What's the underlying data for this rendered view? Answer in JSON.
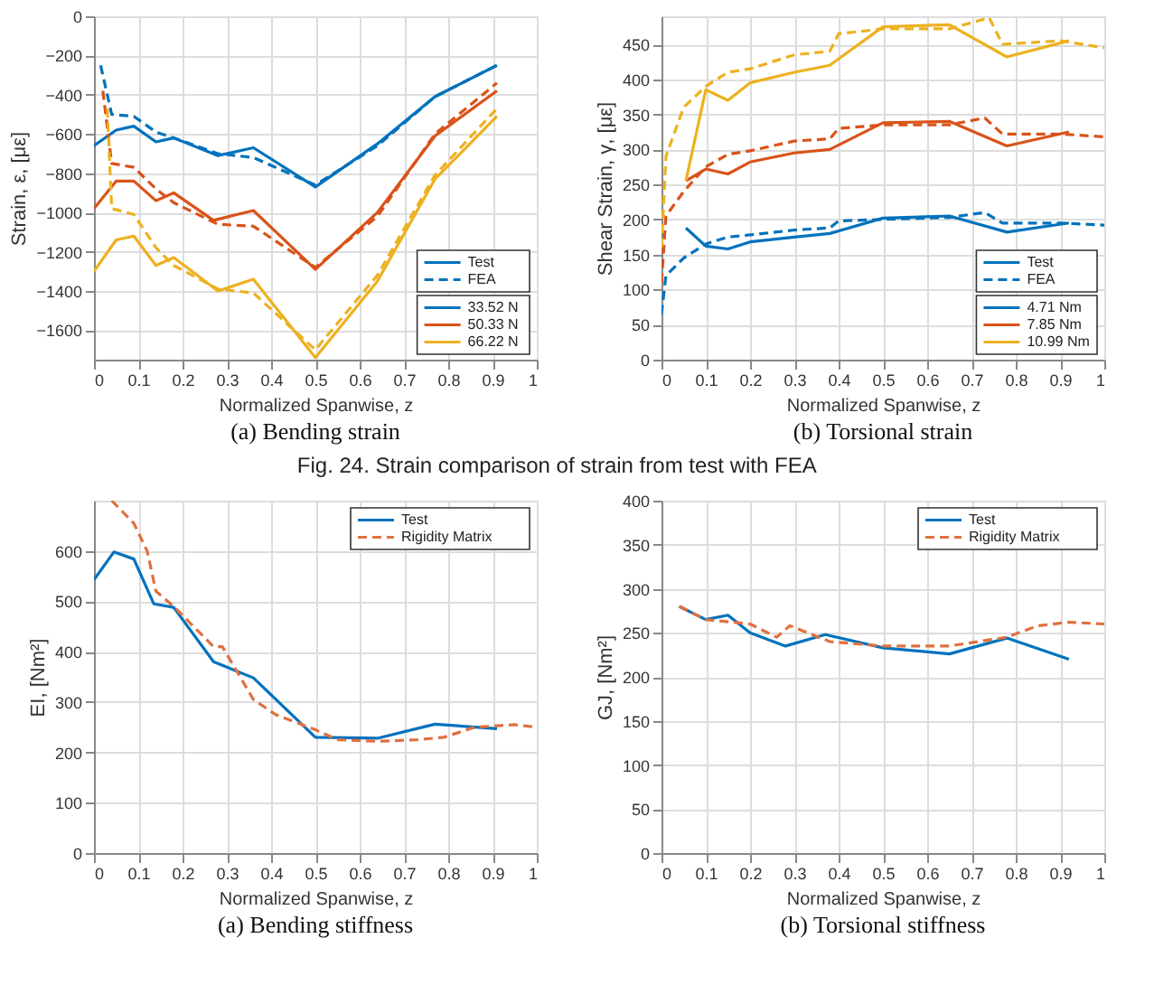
{
  "chart_data": [
    {
      "type": "line",
      "title": "(a) Bending strain",
      "xlabel": "Normalized Spanwise, z",
      "ylabel": "Strain, ε, [με]",
      "xlim": [
        0,
        1
      ],
      "xticks": [
        0,
        0.1,
        0.2,
        0.3,
        0.4,
        0.5,
        0.6,
        0.7,
        0.8,
        0.9,
        1
      ],
      "ylim": [
        -1750,
        0
      ],
      "yticks": [
        -1600,
        -1400,
        -1200,
        -1000,
        -800,
        -600,
        -400,
        -200,
        0
      ],
      "grid": true,
      "legend": "bottom right",
      "annotations": [
        "Test",
        "FEA",
        "Fig. 24. Strain comparison of strain from test with FEA"
      ],
      "series": [
        {
          "name": "33.52 N",
          "color": "#0072bd",
          "line_style": "solid",
          "x": [
            0,
            0.05,
            0.09,
            0.14,
            0.18,
            0.28,
            0.36,
            0.5,
            0.64,
            0.77,
            0.91
          ],
          "values": [
            -660,
            -580,
            -560,
            -640,
            -620,
            -710,
            -670,
            -870,
            -650,
            -410,
            -250
          ]
        },
        {
          "color": "#0072bd",
          "line_style": "dashed",
          "x": [
            0.015,
            0.04,
            0.09,
            0.14,
            0.18,
            0.28,
            0.36,
            0.5,
            0.64,
            0.77,
            0.91
          ],
          "values": [
            -250,
            -500,
            -510,
            -590,
            -620,
            -700,
            -720,
            -860,
            -660,
            -410,
            -250
          ]
        },
        {
          "name": "50.33 N",
          "color": "#d95319",
          "line_style": "solid",
          "x": [
            0,
            0.05,
            0.09,
            0.14,
            0.18,
            0.27,
            0.36,
            0.5,
            0.64,
            0.77,
            0.91
          ],
          "values": [
            -980,
            -840,
            -840,
            -940,
            -900,
            -1040,
            -990,
            -1290,
            -1000,
            -610,
            -380
          ]
        },
        {
          "color": "#d95319",
          "line_style": "dashed",
          "x": [
            0.02,
            0.04,
            0.09,
            0.14,
            0.18,
            0.28,
            0.36,
            0.5,
            0.64,
            0.77,
            0.91
          ],
          "values": [
            -380,
            -750,
            -770,
            -880,
            -950,
            -1060,
            -1070,
            -1280,
            -1020,
            -600,
            -340
          ]
        },
        {
          "name": "66.22 N",
          "color": "#edb120",
          "line_style": "solid",
          "x": [
            0,
            0.05,
            0.09,
            0.14,
            0.18,
            0.28,
            0.36,
            0.5,
            0.64,
            0.77,
            0.91
          ],
          "values": [
            -1300,
            -1140,
            -1120,
            -1270,
            -1230,
            -1400,
            -1340,
            -1740,
            -1350,
            -830,
            -510
          ]
        },
        {
          "color": "#edb120",
          "line_style": "dashed",
          "x": [
            0.03,
            0.04,
            0.09,
            0.14,
            0.18,
            0.28,
            0.36,
            0.5,
            0.64,
            0.77,
            0.91
          ],
          "values": [
            -470,
            -980,
            -1010,
            -1180,
            -1270,
            -1390,
            -1410,
            -1700,
            -1320,
            -810,
            -470
          ]
        }
      ]
    },
    {
      "type": "line",
      "title": "(b) Torsional strain",
      "xlabel": "Normalized Spanwise, z",
      "ylabel": "Shear Strain, γ, [με]",
      "xlim": [
        0,
        1
      ],
      "xticks": [
        0,
        0.1,
        0.2,
        0.3,
        0.4,
        0.5,
        0.6,
        0.7,
        0.8,
        0.9,
        1
      ],
      "ylim": [
        0,
        490
      ],
      "yticks": [
        0,
        50,
        100,
        150,
        200,
        250,
        300,
        350,
        400,
        450
      ],
      "grid": true,
      "legend": "bottom right",
      "annotations": [
        "Test",
        "FEA"
      ],
      "series": [
        {
          "name": "4.71 Nm",
          "color": "#0072bd",
          "line_style": "solid",
          "x": [
            0.055,
            0.1,
            0.15,
            0.2,
            0.3,
            0.38,
            0.5,
            0.65,
            0.78,
            0.92
          ],
          "values": [
            188,
            162,
            158,
            168,
            175,
            180,
            202,
            205,
            182,
            195
          ]
        },
        {
          "color": "#0072bd",
          "line_style": "dashed",
          "x": [
            0,
            0.01,
            0.05,
            0.1,
            0.15,
            0.2,
            0.3,
            0.38,
            0.4,
            0.5,
            0.65,
            0.73,
            0.77,
            0.9,
            1
          ],
          "values": [
            65,
            120,
            145,
            165,
            175,
            178,
            185,
            188,
            198,
            200,
            203,
            210,
            195,
            195,
            192
          ]
        },
        {
          "name": "7.85 Nm",
          "color": "#d95319",
          "line_style": "solid",
          "x": [
            0.055,
            0.1,
            0.15,
            0.2,
            0.3,
            0.38,
            0.5,
            0.65,
            0.78,
            0.92
          ],
          "values": [
            255,
            272,
            265,
            282,
            295,
            300,
            338,
            340,
            305,
            325
          ]
        },
        {
          "color": "#d95319",
          "line_style": "dashed",
          "x": [
            0,
            0.01,
            0.05,
            0.1,
            0.15,
            0.2,
            0.3,
            0.38,
            0.4,
            0.5,
            0.65,
            0.73,
            0.77,
            0.9,
            1
          ],
          "values": [
            110,
            205,
            240,
            275,
            293,
            298,
            312,
            315,
            330,
            335,
            335,
            345,
            322,
            322,
            318
          ]
        },
        {
          "name": "10.99 Nm",
          "color": "#edb120",
          "line_style": "solid",
          "x": [
            0.055,
            0.1,
            0.15,
            0.2,
            0.3,
            0.38,
            0.5,
            0.65,
            0.78,
            0.92
          ],
          "values": [
            255,
            385,
            370,
            395,
            410,
            420,
            475,
            478,
            432,
            455
          ]
        },
        {
          "color": "#edb120",
          "line_style": "dashed",
          "x": [
            0,
            0.01,
            0.05,
            0.1,
            0.15,
            0.2,
            0.3,
            0.38,
            0.4,
            0.5,
            0.65,
            0.74,
            0.77,
            0.9,
            1
          ],
          "values": [
            160,
            290,
            360,
            390,
            410,
            415,
            435,
            440,
            465,
            472,
            472,
            488,
            450,
            455,
            445
          ]
        }
      ]
    },
    {
      "type": "line",
      "title": "(a) Bending stiffness",
      "xlabel": "Normalized Spanwise, z",
      "ylabel": "EI, [Nm²]",
      "xlim": [
        0,
        1
      ],
      "xticks": [
        0,
        0.1,
        0.2,
        0.3,
        0.4,
        0.5,
        0.6,
        0.7,
        0.8,
        0.9,
        1
      ],
      "ylim": [
        0,
        700
      ],
      "yticks": [
        0,
        100,
        200,
        300,
        400,
        500,
        600
      ],
      "grid": true,
      "legend": "top right",
      "series": [
        {
          "name": "Test",
          "color": "#0072bd",
          "line_style": "solid",
          "x": [
            0,
            0.045,
            0.09,
            0.135,
            0.18,
            0.27,
            0.36,
            0.5,
            0.64,
            0.77,
            0.91
          ],
          "values": [
            543,
            598,
            584,
            495,
            488,
            380,
            348,
            230,
            228,
            256,
            247
          ]
        },
        {
          "name": "Rigidity Matrix",
          "color": "#e07040",
          "line_style": "dashed",
          "x": [
            0.04,
            0.09,
            0.12,
            0.14,
            0.18,
            0.27,
            0.29,
            0.36,
            0.41,
            0.5,
            0.55,
            0.64,
            0.73,
            0.79,
            0.86,
            0.95,
            1
          ],
          "values": [
            700,
            655,
            600,
            520,
            490,
            410,
            410,
            305,
            275,
            245,
            225,
            222,
            225,
            230,
            250,
            255,
            250
          ]
        }
      ]
    },
    {
      "type": "line",
      "title": "(b) Torsional stiffness",
      "xlabel": "Normalized Spanwise, z",
      "ylabel": "GJ, [Nm²]",
      "xlim": [
        0,
        1
      ],
      "xticks": [
        0,
        0.1,
        0.2,
        0.3,
        0.4,
        0.5,
        0.6,
        0.7,
        0.8,
        0.9,
        1
      ],
      "ylim": [
        0,
        400
      ],
      "yticks": [
        0,
        50,
        100,
        150,
        200,
        250,
        300,
        350,
        400
      ],
      "grid": true,
      "legend": "top right",
      "series": [
        {
          "name": "Test",
          "color": "#0072bd",
          "line_style": "solid",
          "x": [
            0.04,
            0.1,
            0.15,
            0.2,
            0.28,
            0.37,
            0.5,
            0.65,
            0.78,
            0.92
          ],
          "values": [
            280,
            265,
            270,
            250,
            235,
            248,
            233,
            226,
            244,
            220
          ]
        },
        {
          "name": "Rigidity Matrix",
          "color": "#e07040",
          "line_style": "dashed",
          "x": [
            0.04,
            0.1,
            0.2,
            0.26,
            0.29,
            0.38,
            0.5,
            0.65,
            0.78,
            0.85,
            0.92,
            1
          ],
          "values": [
            280,
            265,
            260,
            245,
            258,
            240,
            235,
            235,
            245,
            258,
            262,
            260
          ]
        }
      ]
    }
  ]
}
